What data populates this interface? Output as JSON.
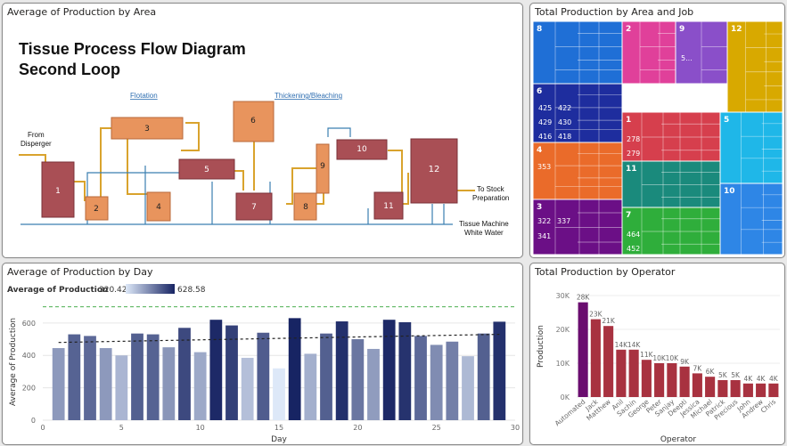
{
  "colors": {
    "equipment_fill": "#e8945d",
    "equipment_dark": "#a94f55",
    "pipe_gold": "#d9a32d",
    "pipe_blue": "#3b7fb0",
    "bar_low": "#dde8f8",
    "bar_high": "#172463",
    "ref_line": "#4caf50",
    "trend_line": "#222222",
    "operator_top": "#6a0d6f",
    "operator_bar": "#a83240"
  },
  "panels": {
    "area": {
      "title": "Average of Production by Area"
    },
    "treemap": {
      "title": "Total Production by Area and Job"
    },
    "day": {
      "title": "Average of Production by Day"
    },
    "operator": {
      "title": "Total Production by Operator"
    }
  },
  "diagram": {
    "title_line1": "Tissue Process Flow Diagram",
    "title_line2": "Second Loop",
    "label_flotation": "Flotation",
    "label_thickening": "Thickening/Bleaching",
    "label_from_line1": "From",
    "label_from_line2": "Disperger",
    "label_to_line1": "To Stock",
    "label_to_line2": "Preparation",
    "label_white_line1": "Tissue Machine",
    "label_white_line2": "White Water",
    "units": [
      "1",
      "2",
      "3",
      "4",
      "5",
      "6",
      "7",
      "8",
      "9",
      "10",
      "11",
      "12"
    ]
  },
  "treemap": {
    "areas": [
      {
        "label": "8",
        "color": "#1f6fd6",
        "jobs": []
      },
      {
        "label": "2",
        "color": "#e0409a",
        "jobs": []
      },
      {
        "label": "9",
        "color": "#8a4fc9",
        "jobs": [
          "5..."
        ]
      },
      {
        "label": "12",
        "color": "#d8a900",
        "jobs": []
      },
      {
        "label": "6",
        "color": "#1e2d9e",
        "jobs": [
          "425",
          "422",
          "429",
          "430",
          "416",
          "418"
        ]
      },
      {
        "label": "1",
        "color": "#d63f4d",
        "jobs": [
          "278",
          "279"
        ]
      },
      {
        "label": "5",
        "color": "#1fb7e8",
        "jobs": []
      },
      {
        "label": "4",
        "color": "#ea6b2a",
        "jobs": [
          "353"
        ]
      },
      {
        "label": "11",
        "color": "#1a8a7c",
        "jobs": []
      },
      {
        "label": "10",
        "color": "#2e86e6",
        "jobs": []
      },
      {
        "label": "3",
        "color": "#6b0f86",
        "jobs": [
          "322",
          "337",
          "341"
        ]
      },
      {
        "label": "7",
        "color": "#2fae3b",
        "jobs": [
          "464",
          "452"
        ]
      }
    ]
  },
  "legend_day": {
    "label": "Average of Production",
    "min": "320.42",
    "max": "628.58"
  },
  "chart_data": [
    {
      "type": "bar",
      "title": "Average of Production by Day",
      "xlabel": "Day",
      "ylabel": "Average of Production",
      "x": [
        1,
        2,
        3,
        4,
        5,
        6,
        7,
        8,
        9,
        10,
        11,
        12,
        13,
        14,
        15,
        16,
        17,
        18,
        19,
        20,
        21,
        22,
        23,
        24,
        25,
        26,
        27,
        28,
        29
      ],
      "values": [
        445,
        530,
        520,
        445,
        400,
        535,
        530,
        450,
        570,
        420,
        620,
        585,
        385,
        540,
        320,
        630,
        410,
        535,
        610,
        500,
        440,
        620,
        605,
        520,
        465,
        485,
        395,
        535,
        608
      ],
      "xlim": [
        0,
        30
      ],
      "ylim": [
        0,
        720
      ],
      "xticks": [
        "0",
        "5",
        "10",
        "15",
        "20",
        "25",
        "30"
      ],
      "yticks": [
        "0",
        "200",
        "400",
        "600"
      ],
      "reference_line": 700,
      "trend": [
        480,
        530
      ],
      "color_scale": [
        320.42,
        628.58
      ]
    },
    {
      "type": "bar",
      "title": "Total Production by Operator",
      "xlabel": "Operator",
      "ylabel": "Production",
      "categories": [
        "Automated",
        "Jack",
        "Matthew",
        "Anil",
        "Sachin",
        "George",
        "Peter",
        "Sanjay",
        "Deepti",
        "Jessica",
        "Michael",
        "Patrick",
        "Precious",
        "John",
        "Andrew",
        "Chris"
      ],
      "values": [
        28000,
        23000,
        21000,
        14000,
        14000,
        11000,
        10000,
        10000,
        9000,
        7000,
        6000,
        5000,
        5000,
        4000,
        4000,
        4000
      ],
      "data_labels": [
        "28K",
        "23K",
        "21K",
        "14K",
        "14K",
        "11K",
        "10K",
        "10K",
        "9K",
        "7K",
        "6K",
        "5K",
        "5K",
        "4K",
        "4K",
        "4K"
      ],
      "ylim": [
        0,
        30000
      ],
      "yticks": [
        "0K",
        "10K",
        "20K",
        "30K"
      ]
    }
  ]
}
